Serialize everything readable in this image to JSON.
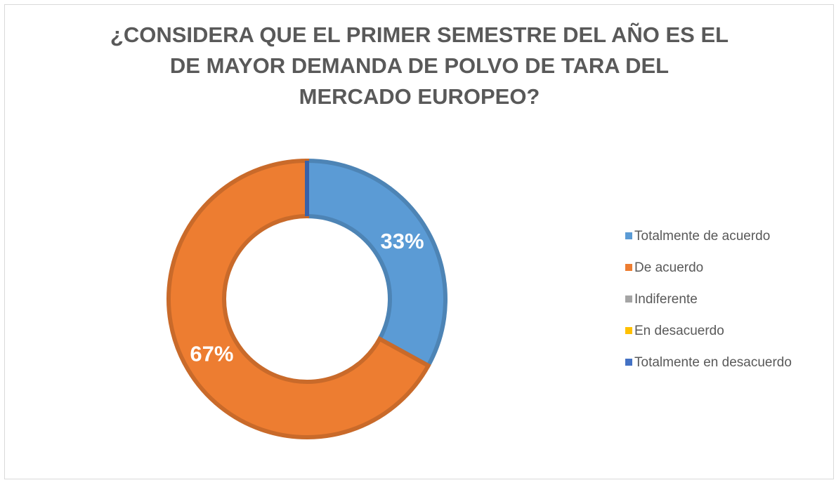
{
  "chart_data": {
    "type": "doughnut",
    "title": [
      "¿CONSIDERA QUE EL PRIMER SEMESTRE DEL AÑO ES EL",
      "DE MAYOR DEMANDA DE POLVO DE TARA DEL",
      "MERCADO EUROPEO?"
    ],
    "categories": [
      "Totalmente de acuerdo",
      "De acuerdo",
      "Indiferente",
      "En desacuerdo",
      "Totalmente en desacuerdo"
    ],
    "values": [
      33,
      67,
      0,
      0,
      0
    ],
    "value_labels": [
      "33%",
      "67%",
      null,
      null,
      null
    ],
    "colors": [
      "#5b9bd5",
      "#ed7d31",
      "#a5a5a5",
      "#ffc000",
      "#4472c4"
    ],
    "legend": "right"
  }
}
